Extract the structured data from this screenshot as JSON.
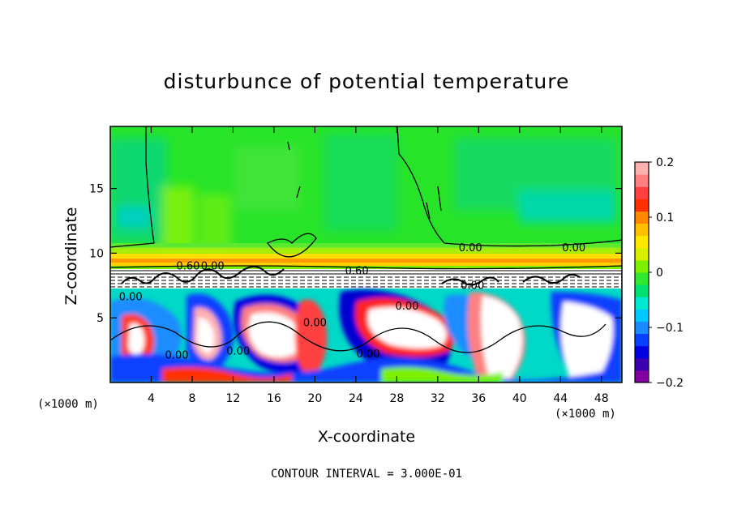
{
  "chart_data": {
    "type": "heatmap",
    "title": "disturbunce of potential temperature",
    "xlabel": "X-coordinate",
    "ylabel": "Z-coordinate",
    "x_unit": "(×1000 m)",
    "footnote": "CONTOUR INTERVAL = 3.000E-01",
    "xlim": [
      0,
      50
    ],
    "ylim": [
      0,
      19.8
    ],
    "x_ticks": [
      4,
      8,
      12,
      16,
      20,
      24,
      28,
      32,
      36,
      40,
      44,
      48
    ],
    "y_ticks": [
      5,
      10,
      15
    ],
    "colorbar": {
      "ticks": [
        0.2,
        0.1,
        0,
        -0.1,
        -0.2
      ],
      "tick_labels": [
        "0.2",
        "0.1",
        "0",
        "−0.1",
        "−0.2"
      ],
      "range": [
        -0.2,
        0.2
      ],
      "colors": [
        "#8000a0",
        "#3d00b0",
        "#0000e0",
        "#0a40ff",
        "#1a8cff",
        "#00c8ff",
        "#00e8d0",
        "#00e070",
        "#30e830",
        "#7cf000",
        "#d8f000",
        "#ffe800",
        "#ffc000",
        "#ff8800",
        "#ff3000",
        "#ff4040",
        "#ff8080",
        "#ffb0b0"
      ]
    },
    "contour_labels": [
      {
        "text": "0.00",
        "x": 2.0,
        "z": 6.6
      },
      {
        "text": "0.60",
        "x": 7.6,
        "z": 9.0
      },
      {
        "text": "0.00",
        "x": 10.0,
        "z": 9.0
      },
      {
        "text": "0.60",
        "x": 24.1,
        "z": 8.6
      },
      {
        "text": "0.00",
        "x": 35.2,
        "z": 10.4
      },
      {
        "text": "0.00",
        "x": 45.3,
        "z": 10.4
      },
      {
        "text": "0.00",
        "x": 35.4,
        "z": 7.5
      },
      {
        "text": "0.00",
        "x": 29.0,
        "z": 5.9
      },
      {
        "text": "0.00",
        "x": 20.0,
        "z": 4.6
      },
      {
        "text": "0.00",
        "x": 6.5,
        "z": 2.1
      },
      {
        "text": "0.00",
        "x": 12.5,
        "z": 2.4
      },
      {
        "text": "0.00",
        "x": 25.2,
        "z": 2.2
      }
    ],
    "grid": false
  }
}
